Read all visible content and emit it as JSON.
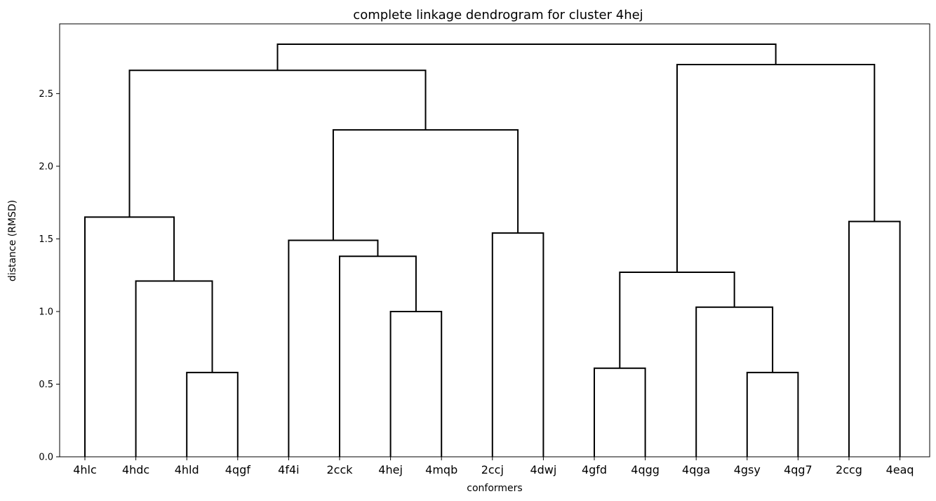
{
  "chart_data": {
    "type": "dendrogram",
    "title": "complete linkage dendrogram for cluster 4hej",
    "xlabel": "conformers",
    "ylabel": "distance (RMSD)",
    "ylim": [
      0,
      2.98
    ],
    "yticks": [
      "0.0",
      "0.5",
      "1.0",
      "1.5",
      "2.0",
      "2.5"
    ],
    "ytick_values": [
      0,
      0.5,
      1.0,
      1.5,
      2.0,
      2.5
    ],
    "leaves": [
      "4hlc",
      "4hdc",
      "4hld",
      "4qgf",
      "4f4i",
      "2cck",
      "4hej",
      "4mqb",
      "2ccj",
      "4dwj",
      "4gfd",
      "4qgg",
      "4qga",
      "4gsy",
      "4qg7",
      "2ccg",
      "4eaq"
    ],
    "merges": [
      {
        "left": "4hld",
        "right": "4qgf",
        "height": 0.58
      },
      {
        "left": "4hdc",
        "right": "(4hld,4qgf)",
        "height": 1.21
      },
      {
        "left": "4hlc",
        "right": "(4hdc,4hld,4qgf)",
        "height": 1.65
      },
      {
        "left": "4hej",
        "right": "4mqb",
        "height": 1.0
      },
      {
        "left": "2cck",
        "right": "(4hej,4mqb)",
        "height": 1.38
      },
      {
        "left": "4f4i",
        "right": "(2cck,4hej,4mqb)",
        "height": 1.49
      },
      {
        "left": "2ccj",
        "right": "4dwj",
        "height": 1.54
      },
      {
        "left": "(4f4i,2cck,4hej,4mqb)",
        "right": "(2ccj,4dwj)",
        "height": 2.25
      },
      {
        "left": "(4hlc,4hdc,4hld,4qgf)",
        "right": "(4f4i,2cck,4hej,4mqb,2ccj,4dwj)",
        "height": 2.66
      },
      {
        "left": "4gfd",
        "right": "4qgg",
        "height": 0.61
      },
      {
        "left": "4gsy",
        "right": "4qg7",
        "height": 0.58
      },
      {
        "left": "4qga",
        "right": "(4gsy,4qg7)",
        "height": 1.03
      },
      {
        "left": "(4gfd,4qgg)",
        "right": "(4qga,4gsy,4qg7)",
        "height": 1.27
      },
      {
        "left": "2ccg",
        "right": "4eaq",
        "height": 1.62
      },
      {
        "left": "(4gfd,4qgg,4qga,4gsy,4qg7)",
        "right": "(2ccg,4eaq)",
        "height": 2.7
      },
      {
        "left": "(4hlc..4dwj)",
        "right": "(4gfd..4eaq)",
        "height": 2.84
      }
    ],
    "grid": false,
    "legend": "none",
    "line_color": "#000000"
  }
}
